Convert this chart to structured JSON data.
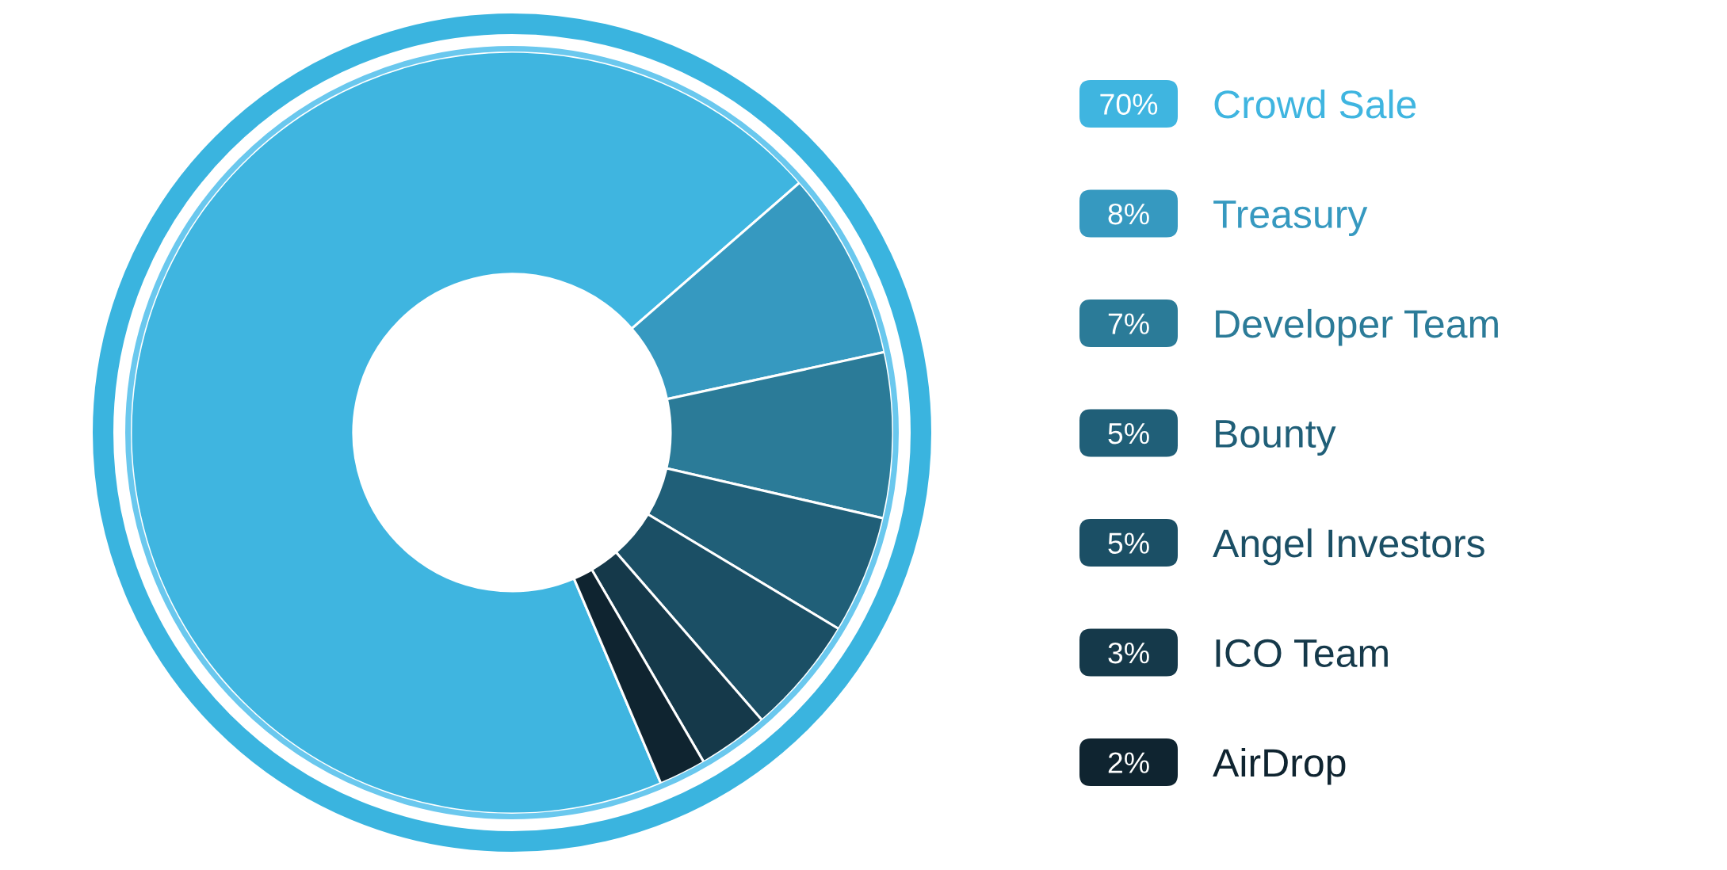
{
  "chart_data": {
    "type": "donut",
    "categories": [
      "Crowd Sale",
      "Treasury",
      "Developer Team",
      "Bounty",
      "Angel Investors",
      "ICO Team",
      "AirDrop"
    ],
    "values": [
      70,
      8,
      7,
      5,
      5,
      3,
      2
    ],
    "colors": [
      "#3fb5e0",
      "#3699c0",
      "#2b7b98",
      "#205f78",
      "#1b4f65",
      "#15394a",
      "#0f2430"
    ],
    "value_labels": [
      "70%",
      "8%",
      "7%",
      "5%",
      "5%",
      "3%",
      "2%"
    ],
    "legend": "right"
  }
}
